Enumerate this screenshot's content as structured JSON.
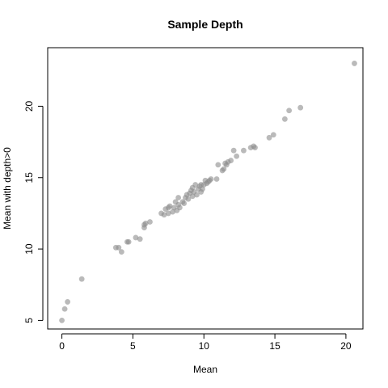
{
  "chart_data": {
    "type": "scatter",
    "title": "Sample Depth",
    "xlabel": "Mean",
    "ylabel": "Mean with depth>0",
    "xlim": [
      -1,
      21.2
    ],
    "ylim": [
      4.4,
      24.1
    ],
    "xticks": [
      0,
      5,
      10,
      15,
      20
    ],
    "yticks": [
      5,
      10,
      15,
      20
    ],
    "xtick_labels": [
      "0",
      "5",
      "10",
      "15",
      "20"
    ],
    "ytick_labels": [
      "5",
      "10",
      "15",
      "20"
    ],
    "grid": false,
    "legend": "none",
    "point_color": "#8c8c8c",
    "point_opacity": 0.6,
    "points": [
      {
        "x": 0.0,
        "y": 5.0
      },
      {
        "x": 0.2,
        "y": 5.8
      },
      {
        "x": 0.4,
        "y": 6.3
      },
      {
        "x": 1.4,
        "y": 7.9
      },
      {
        "x": 3.8,
        "y": 10.1
      },
      {
        "x": 4.0,
        "y": 10.1
      },
      {
        "x": 4.2,
        "y": 9.8
      },
      {
        "x": 4.6,
        "y": 10.5
      },
      {
        "x": 4.7,
        "y": 10.5
      },
      {
        "x": 5.2,
        "y": 10.8
      },
      {
        "x": 5.5,
        "y": 10.7
      },
      {
        "x": 5.8,
        "y": 11.7
      },
      {
        "x": 5.9,
        "y": 11.8
      },
      {
        "x": 5.8,
        "y": 11.5
      },
      {
        "x": 6.2,
        "y": 11.9
      },
      {
        "x": 7.0,
        "y": 12.5
      },
      {
        "x": 7.2,
        "y": 12.4
      },
      {
        "x": 7.3,
        "y": 12.8
      },
      {
        "x": 7.5,
        "y": 12.9
      },
      {
        "x": 7.5,
        "y": 12.5
      },
      {
        "x": 7.6,
        "y": 13.0
      },
      {
        "x": 7.8,
        "y": 12.6
      },
      {
        "x": 7.9,
        "y": 12.9
      },
      {
        "x": 8.0,
        "y": 13.3
      },
      {
        "x": 8.1,
        "y": 12.7
      },
      {
        "x": 8.2,
        "y": 13.1
      },
      {
        "x": 8.2,
        "y": 13.6
      },
      {
        "x": 8.3,
        "y": 12.9
      },
      {
        "x": 8.5,
        "y": 13.3
      },
      {
        "x": 8.6,
        "y": 13.2
      },
      {
        "x": 8.7,
        "y": 13.6
      },
      {
        "x": 8.8,
        "y": 13.8
      },
      {
        "x": 8.9,
        "y": 13.5
      },
      {
        "x": 9.0,
        "y": 13.9
      },
      {
        "x": 9.1,
        "y": 14.1
      },
      {
        "x": 9.2,
        "y": 13.7
      },
      {
        "x": 9.2,
        "y": 14.3
      },
      {
        "x": 9.3,
        "y": 14.0
      },
      {
        "x": 9.4,
        "y": 14.5
      },
      {
        "x": 9.5,
        "y": 13.8
      },
      {
        "x": 9.6,
        "y": 14.2
      },
      {
        "x": 9.7,
        "y": 14.4
      },
      {
        "x": 9.8,
        "y": 14.0
      },
      {
        "x": 9.8,
        "y": 14.5
      },
      {
        "x": 9.9,
        "y": 14.2
      },
      {
        "x": 10.0,
        "y": 14.5
      },
      {
        "x": 10.1,
        "y": 14.8
      },
      {
        "x": 10.2,
        "y": 14.6
      },
      {
        "x": 10.3,
        "y": 14.7
      },
      {
        "x": 10.4,
        "y": 14.8
      },
      {
        "x": 10.5,
        "y": 14.9
      },
      {
        "x": 10.9,
        "y": 14.9
      },
      {
        "x": 11.0,
        "y": 15.9
      },
      {
        "x": 11.3,
        "y": 15.5
      },
      {
        "x": 11.4,
        "y": 15.6
      },
      {
        "x": 11.5,
        "y": 16.0
      },
      {
        "x": 11.6,
        "y": 15.9
      },
      {
        "x": 11.7,
        "y": 16.1
      },
      {
        "x": 11.9,
        "y": 16.2
      },
      {
        "x": 12.1,
        "y": 16.9
      },
      {
        "x": 12.3,
        "y": 16.5
      },
      {
        "x": 12.8,
        "y": 16.9
      },
      {
        "x": 13.3,
        "y": 17.1
      },
      {
        "x": 13.5,
        "y": 17.2
      },
      {
        "x": 13.6,
        "y": 17.1
      },
      {
        "x": 14.6,
        "y": 17.8
      },
      {
        "x": 14.9,
        "y": 18.0
      },
      {
        "x": 15.7,
        "y": 19.1
      },
      {
        "x": 16.0,
        "y": 19.7
      },
      {
        "x": 16.8,
        "y": 19.9
      },
      {
        "x": 20.6,
        "y": 23.0
      }
    ]
  }
}
